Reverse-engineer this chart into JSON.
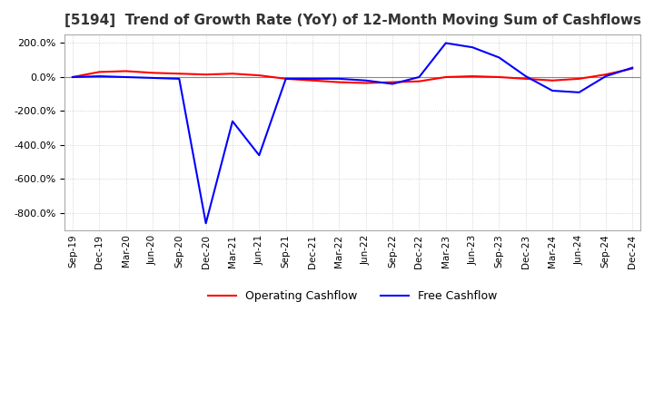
{
  "title": "[5194]  Trend of Growth Rate (YoY) of 12-Month Moving Sum of Cashflows",
  "title_fontsize": 11,
  "background_color": "#ffffff",
  "grid_color": "#aaaaaa",
  "ylim": [
    -900,
    250
  ],
  "yticks": [
    200,
    0,
    -200,
    -400,
    -600,
    -800
  ],
  "x_labels": [
    "Sep-19",
    "Dec-19",
    "Mar-20",
    "Jun-20",
    "Sep-20",
    "Dec-20",
    "Mar-21",
    "Jun-21",
    "Sep-21",
    "Dec-21",
    "Mar-22",
    "Jun-22",
    "Sep-22",
    "Dec-22",
    "Mar-23",
    "Jun-23",
    "Sep-23",
    "Dec-23",
    "Mar-24",
    "Jun-24",
    "Sep-24",
    "Dec-24"
  ],
  "operating_cashflow": [
    0,
    30,
    35,
    25,
    20,
    15,
    20,
    10,
    -10,
    -20,
    -30,
    -35,
    -30,
    -25,
    0,
    5,
    0,
    -10,
    -20,
    -10,
    15,
    50
  ],
  "free_cashflow": [
    0,
    5,
    0,
    -5,
    -10,
    -860,
    -260,
    -460,
    -10,
    -10,
    -10,
    -20,
    -40,
    0,
    200,
    175,
    115,
    5,
    -80,
    -90,
    5,
    55
  ],
  "operating_color": "#ff0000",
  "free_color": "#0000ff",
  "legend_labels": [
    "Operating Cashflow",
    "Free Cashflow"
  ]
}
